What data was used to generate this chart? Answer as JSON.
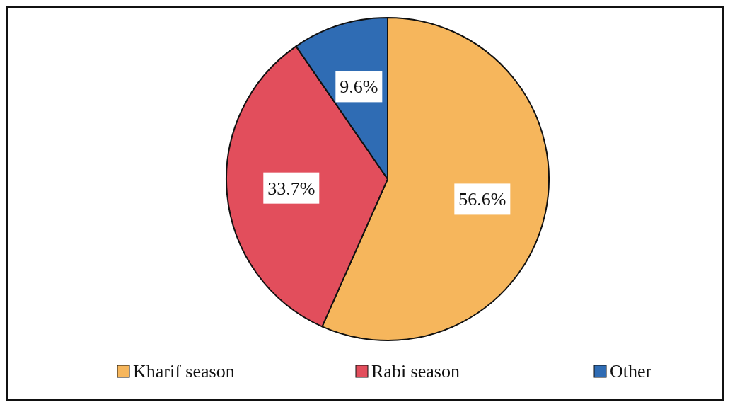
{
  "chart_data": {
    "type": "pie",
    "categories": [
      "Kharif season",
      "Rabi season",
      "Other"
    ],
    "values": [
      56.6,
      33.7,
      9.6
    ],
    "colors": [
      "#f6b65c",
      "#e24e5c",
      "#2f6cb4"
    ],
    "value_labels": [
      "56.6%",
      "33.7%",
      "9.6%"
    ],
    "legend": "bottom"
  }
}
